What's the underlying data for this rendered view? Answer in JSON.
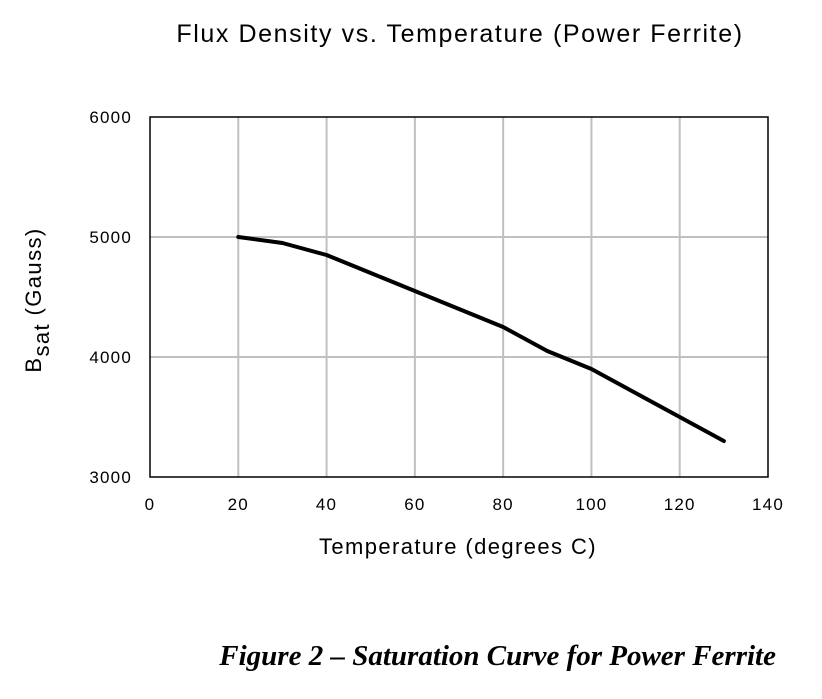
{
  "chart_data": {
    "type": "line",
    "title": "Flux Density vs. Temperature (Power Ferrite)",
    "xlabel": "Temperature (degrees C)",
    "ylabel": {
      "main": "B",
      "subscript": "sat",
      "suffix": " (Gauss)"
    },
    "xlim": [
      0,
      140
    ],
    "ylim": [
      3000,
      6000
    ],
    "xticks": [
      0,
      20,
      40,
      60,
      80,
      100,
      120,
      140
    ],
    "yticks": [
      3000,
      4000,
      5000,
      6000
    ],
    "grid": true,
    "legend": "none",
    "series": [
      {
        "x": [
          20,
          30,
          40,
          50,
          60,
          70,
          80,
          90,
          100,
          110,
          120,
          130
        ],
        "y": [
          5000,
          4950,
          4850,
          4700,
          4550,
          4400,
          4250,
          4050,
          3900,
          3700,
          3500,
          3300
        ],
        "color": "#000000"
      }
    ],
    "colors": {
      "grid": "#c0c0c0",
      "frame": "#000000",
      "line": "#000000"
    }
  },
  "caption": "Figure 2 – Saturation Curve for Power Ferrite"
}
